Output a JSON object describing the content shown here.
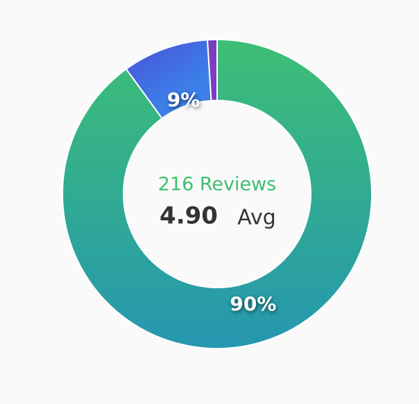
{
  "chart_data": {
    "type": "donut",
    "categories": [
      null,
      null,
      null
    ],
    "values": [
      90,
      9,
      1
    ],
    "value_labels": [
      "90%",
      "9%",
      null
    ],
    "colors": [
      [
        "#3dbf75",
        "#2597b0"
      ],
      [
        "#4b4fd8",
        "#3c7fe8"
      ],
      [
        "#7a3fc0",
        "#7a3fc0"
      ]
    ],
    "center_title": "216 Reviews",
    "center_value": "4.90",
    "center_unit": "Avg"
  }
}
